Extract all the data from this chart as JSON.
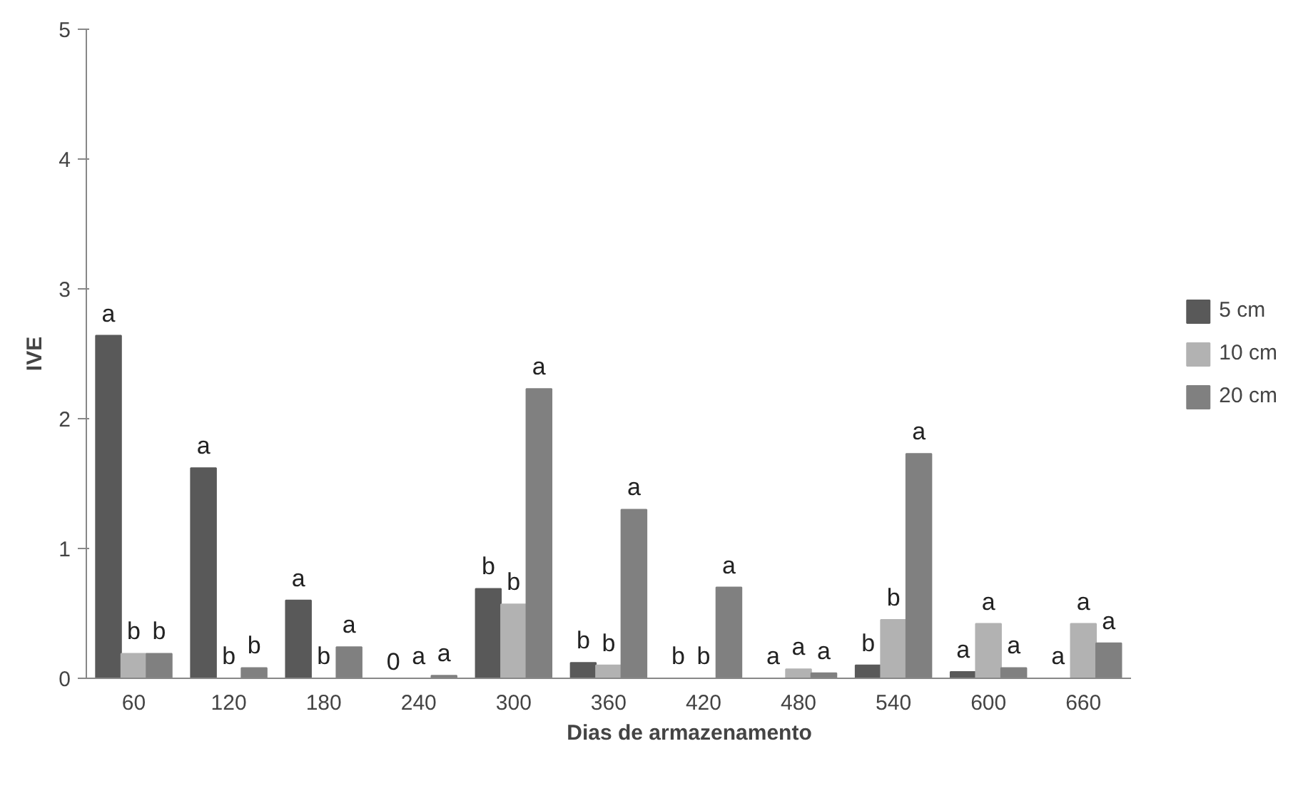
{
  "chart_data": {
    "type": "bar",
    "xlabel": "Dias de armazenamento",
    "ylabel": "IVE",
    "categories": [
      "60",
      "120",
      "180",
      "240",
      "300",
      "360",
      "420",
      "480",
      "540",
      "600",
      "660"
    ],
    "ylim": [
      0,
      5
    ],
    "yticks": [
      0,
      1,
      2,
      3,
      4,
      5
    ],
    "grid": false,
    "legend": "right",
    "series": [
      {
        "name": "5 cm",
        "color": "#595959",
        "values": [
          2.64,
          1.62,
          0.6,
          0,
          0.69,
          0.12,
          0,
          0,
          0.1,
          0.05,
          0
        ],
        "value_labels": [
          "a",
          "a",
          "a",
          "0",
          "b",
          "b",
          "b",
          "a",
          "b",
          "a",
          "a"
        ]
      },
      {
        "name": "10 cm",
        "color": "#b2b2b2",
        "values": [
          0.19,
          0,
          0,
          0,
          0.57,
          0.1,
          0,
          0.07,
          0.45,
          0.42,
          0.42
        ],
        "value_labels": [
          "b",
          "b",
          "b",
          "a",
          "b",
          "b",
          "b",
          "a",
          "b",
          "a",
          "a"
        ]
      },
      {
        "name": "20 cm",
        "color": "#808080",
        "values": [
          0.19,
          0.08,
          0.24,
          0.02,
          2.23,
          1.3,
          0.7,
          0.04,
          1.73,
          0.08,
          0.27
        ],
        "value_labels": [
          "b",
          "b",
          "a",
          "a",
          "a",
          "a",
          "a",
          "a",
          "a",
          "a",
          "a"
        ]
      }
    ]
  }
}
